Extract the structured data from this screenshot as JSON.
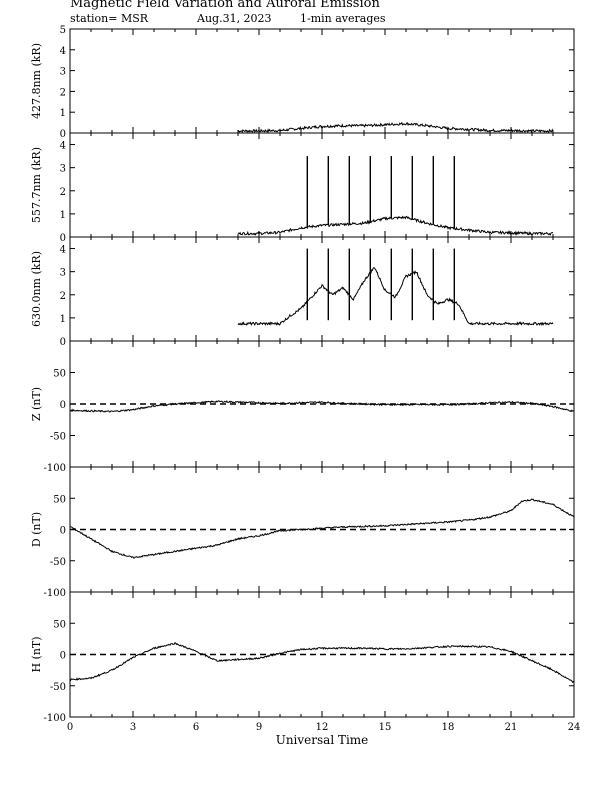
{
  "header": {
    "title": "Magnetic Field Variation and Auroral Emission",
    "station": "station= MSR",
    "date": "Aug.31, 2023",
    "averages": "1-min averages"
  },
  "chart_data": [
    {
      "type": "line",
      "ylabel": "427.8nm (kR)",
      "ylim": [
        0,
        5
      ],
      "yticks": [
        0,
        1,
        2,
        3,
        4,
        5
      ],
      "x": [
        8.0,
        9,
        10,
        11,
        12,
        13,
        14,
        15,
        16,
        17,
        18,
        19,
        20,
        21,
        22,
        23.0
      ],
      "values": [
        0.1,
        0.1,
        0.12,
        0.22,
        0.32,
        0.35,
        0.35,
        0.4,
        0.45,
        0.35,
        0.22,
        0.18,
        0.12,
        0.12,
        0.1,
        0.1
      ],
      "data_start": 8.0,
      "data_end": 23.0
    },
    {
      "type": "line",
      "ylabel": "557.7nm (kR)",
      "ylim": [
        0,
        4.5
      ],
      "yticks": [
        0,
        1,
        2,
        3,
        4
      ],
      "x": [
        8.0,
        9,
        10,
        11,
        12,
        13,
        14,
        15,
        16,
        17,
        18,
        19,
        20,
        21,
        22,
        23.0
      ],
      "values": [
        0.15,
        0.15,
        0.2,
        0.4,
        0.5,
        0.55,
        0.6,
        0.8,
        0.85,
        0.6,
        0.4,
        0.3,
        0.2,
        0.18,
        0.15,
        0.15
      ],
      "spikes": [
        {
          "x": 11.3,
          "peak": 3.5
        },
        {
          "x": 12.3,
          "peak": 3.5
        },
        {
          "x": 13.3,
          "peak": 3.5
        },
        {
          "x": 14.3,
          "peak": 3.5
        },
        {
          "x": 15.3,
          "peak": 3.5
        },
        {
          "x": 16.3,
          "peak": 3.5
        },
        {
          "x": 17.3,
          "peak": 3.5
        },
        {
          "x": 18.3,
          "peak": 3.5
        }
      ],
      "data_start": 8.0,
      "data_end": 23.0
    },
    {
      "type": "line",
      "ylabel": "630.0nm (kR)",
      "ylim": [
        0,
        4.5
      ],
      "yticks": [
        0,
        1,
        2,
        3,
        4
      ],
      "x": [
        8.0,
        9,
        10,
        10.5,
        11,
        11.5,
        12,
        12.5,
        13,
        13.5,
        14,
        14.5,
        15,
        15.5,
        16,
        16.5,
        17,
        17.5,
        18,
        18.5,
        19,
        20,
        21,
        22,
        23.0
      ],
      "values": [
        0.75,
        0.75,
        0.75,
        1.1,
        1.4,
        1.9,
        2.4,
        2.0,
        2.3,
        1.8,
        2.6,
        3.2,
        2.2,
        1.9,
        2.8,
        3.0,
        2.0,
        1.6,
        1.8,
        1.6,
        0.75,
        0.75,
        0.75,
        0.75,
        0.75
      ],
      "spikes": [
        {
          "x": 11.3,
          "peak": 4.0,
          "low": 0.9
        },
        {
          "x": 12.3,
          "peak": 4.0,
          "low": 0.9
        },
        {
          "x": 13.3,
          "peak": 4.0,
          "low": 0.9
        },
        {
          "x": 14.3,
          "peak": 4.0,
          "low": 0.9
        },
        {
          "x": 15.3,
          "peak": 4.0,
          "low": 0.9
        },
        {
          "x": 16.3,
          "peak": 4.0,
          "low": 0.9
        },
        {
          "x": 17.3,
          "peak": 4.0,
          "low": 0.9
        },
        {
          "x": 18.3,
          "peak": 4.0,
          "low": 0.9
        }
      ],
      "data_start": 8.0,
      "data_end": 23.0
    },
    {
      "type": "line",
      "ylabel": "Z (nT)",
      "ylim": [
        -100,
        100
      ],
      "yticks": [
        -100,
        -50,
        0,
        50
      ],
      "zero_line": true,
      "x": [
        0,
        1,
        2,
        3,
        4,
        5,
        6,
        7,
        8,
        9,
        10,
        11,
        12,
        13,
        14,
        15,
        16,
        17,
        18,
        19,
        20,
        21,
        22,
        23,
        24
      ],
      "values": [
        -10,
        -11,
        -12,
        -9,
        -3,
        0,
        2,
        4,
        3,
        2,
        1,
        2,
        3,
        1,
        0,
        -1,
        -1,
        -1,
        -1,
        0,
        2,
        3,
        1,
        -4,
        -12
      ]
    },
    {
      "type": "line",
      "ylabel": "D (nT)",
      "ylim": [
        -100,
        100
      ],
      "yticks": [
        -100,
        -50,
        0,
        50
      ],
      "zero_line": true,
      "x": [
        0,
        1,
        2,
        3,
        4,
        5,
        6,
        7,
        8,
        9,
        10,
        11,
        12,
        13,
        14,
        15,
        16,
        17,
        18,
        19,
        20,
        21,
        21.5,
        22,
        23,
        24
      ],
      "values": [
        5,
        -15,
        -35,
        -45,
        -40,
        -35,
        -30,
        -25,
        -15,
        -10,
        -2,
        0,
        2,
        4,
        5,
        6,
        8,
        10,
        12,
        15,
        20,
        30,
        45,
        48,
        40,
        20
      ]
    },
    {
      "type": "line",
      "ylabel": "H (nT)",
      "ylim": [
        -100,
        100
      ],
      "yticks": [
        -100,
        -50,
        0,
        50
      ],
      "zero_line": true,
      "xticks": [
        0,
        3,
        6,
        9,
        12,
        15,
        18,
        21,
        24
      ],
      "xlabel": "Universal Time",
      "x": [
        0,
        1,
        2,
        3,
        4,
        5,
        6,
        7,
        8,
        9,
        10,
        11,
        12,
        13,
        14,
        15,
        16,
        17,
        18,
        19,
        20,
        21,
        22,
        23,
        24
      ],
      "values": [
        -40,
        -38,
        -25,
        -5,
        10,
        18,
        5,
        -10,
        -8,
        -6,
        2,
        8,
        10,
        10,
        10,
        9,
        9,
        11,
        13,
        13,
        12,
        5,
        -10,
        -25,
        -45
      ]
    }
  ]
}
